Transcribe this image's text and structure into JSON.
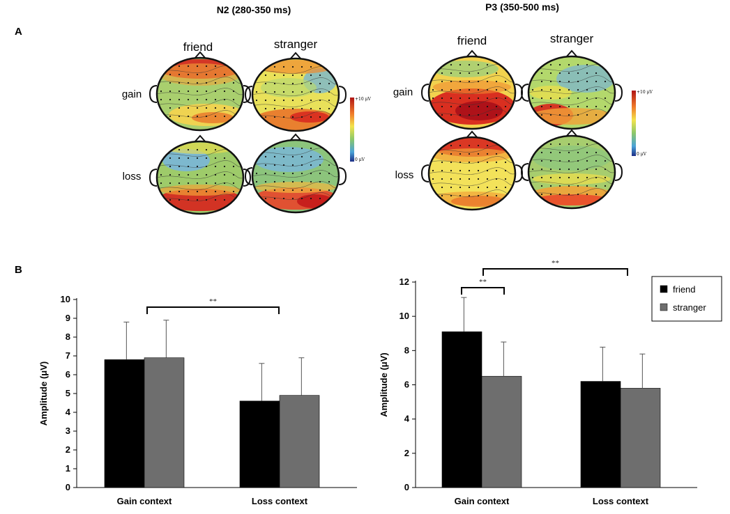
{
  "figure": {
    "titles": {
      "left": "N2 (280-350 ms)",
      "right": "P3 (350-500 ms)"
    },
    "panel_labels": {
      "a": "A",
      "b": "B"
    }
  },
  "topomaps": {
    "n2": {
      "columns": [
        "friend",
        "stranger"
      ],
      "rows": [
        "gain",
        "loss"
      ],
      "colorbar": {
        "max_label": "+10 μV",
        "min_label": "0 μV"
      }
    },
    "p3": {
      "columns": [
        "friend",
        "stranger"
      ],
      "rows": [
        "gain",
        "loss"
      ],
      "colorbar": {
        "max_label": "+10 μV",
        "min_label": "0 μV"
      }
    }
  },
  "colors": {
    "friend": "#000000",
    "stranger": "#6e6e6e",
    "red": "#d7261e",
    "yellow": "#f1e04a",
    "green": "#8cc86a",
    "blue": "#6fa8dc"
  },
  "chart_data": [
    {
      "type": "bar",
      "title": "N2 (280-350 ms)",
      "categories": [
        "Gain context",
        "Loss context"
      ],
      "series": [
        {
          "name": "friend",
          "values": [
            6.8,
            4.6
          ],
          "errors": [
            2.0,
            2.0
          ]
        },
        {
          "name": "stranger",
          "values": [
            6.9,
            4.9
          ],
          "errors": [
            2.0,
            2.0
          ]
        }
      ],
      "ylabel": "Amplitude (μV)",
      "ylim": [
        0,
        10
      ],
      "yticks": [
        0,
        1,
        2,
        3,
        4,
        5,
        6,
        7,
        8,
        9,
        10
      ],
      "significance": [
        {
          "between": "Gain context vs Loss context",
          "label": "**"
        }
      ]
    },
    {
      "type": "bar",
      "title": "P3 (350-500 ms)",
      "categories": [
        "Gain context",
        "Loss context"
      ],
      "series": [
        {
          "name": "friend",
          "values": [
            9.1,
            6.2
          ],
          "errors": [
            2.0,
            2.0
          ]
        },
        {
          "name": "stranger",
          "values": [
            6.5,
            5.8
          ],
          "errors": [
            2.0,
            2.0
          ]
        }
      ],
      "ylabel": "Amplitude  (μV)",
      "ylim": [
        0,
        12
      ],
      "yticks": [
        0,
        2,
        4,
        6,
        8,
        10,
        12
      ],
      "legend": [
        "friend",
        "stranger"
      ],
      "legend_position": "top-right",
      "significance": [
        {
          "between": "friend vs stranger (Gain context)",
          "label": "**"
        },
        {
          "between": "Gain context vs Loss context",
          "label": "**"
        }
      ]
    }
  ]
}
